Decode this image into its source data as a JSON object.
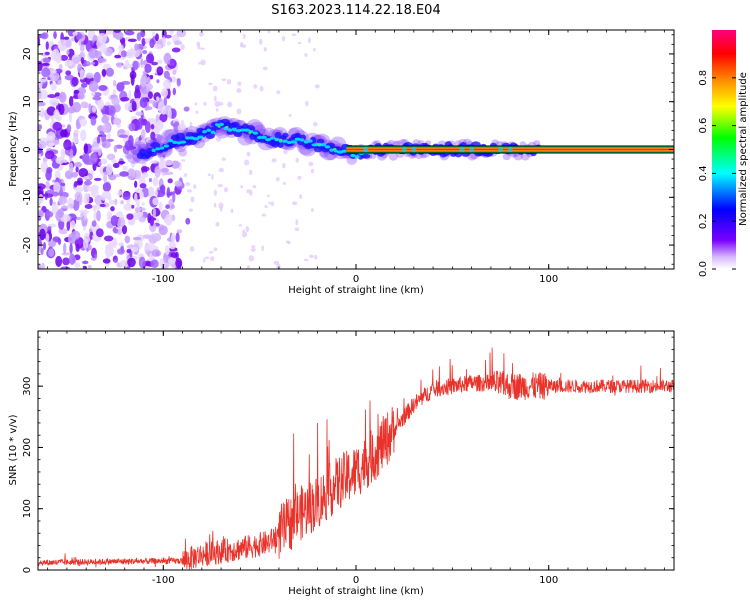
{
  "title": "S163.2023.114.22.18.E04",
  "chart_data": [
    {
      "type": "heatmap",
      "xlabel": "Height of straight line (km)",
      "ylabel": "Frequency (Hz)",
      "xlim": [
        -165,
        165
      ],
      "ylim": [
        -25,
        25
      ],
      "xticks": [
        -100,
        0,
        100
      ],
      "yticks": [
        -20,
        -10,
        0,
        10,
        20
      ],
      "colorbar": {
        "label": "Normalized spectral amplitude",
        "range": [
          0,
          1
        ],
        "ticks": [
          "0.0",
          "0.2",
          "0.4",
          "0.6",
          "0.8"
        ],
        "colors": [
          "#ffffff",
          "#d8b8ff",
          "#7a00ff",
          "#0000ff",
          "#00ffff",
          "#00ff00",
          "#ffff00",
          "#ff8000",
          "#ff0000",
          "#ff0080"
        ]
      },
      "ridge": {
        "x": [
          -110,
          -100,
          -90,
          -80,
          -70,
          -60,
          -50,
          -40,
          -30,
          -20,
          -10,
          0,
          10,
          20,
          40,
          60,
          80,
          100,
          130,
          165
        ],
        "y": [
          -1,
          1,
          2,
          3,
          5,
          4,
          3,
          2,
          2,
          1,
          0,
          -1,
          0,
          0,
          0,
          0,
          0,
          0,
          0,
          0
        ]
      }
    },
    {
      "type": "line",
      "xlabel": "Height of straight line (km)",
      "ylabel": "SNR (10 * v/v)",
      "xlim": [
        -165,
        165
      ],
      "ylim": [
        0,
        390
      ],
      "xticks": [
        -100,
        0,
        100
      ],
      "yticks": [
        0,
        100,
        200,
        300
      ],
      "color": "#e8322a",
      "trend": {
        "x": [
          -165,
          -120,
          -90,
          -80,
          -60,
          -45,
          -40,
          -30,
          -20,
          -10,
          0,
          10,
          20,
          30,
          40,
          50,
          60,
          70,
          80,
          90,
          100,
          120,
          165
        ],
        "y": [
          12,
          14,
          15,
          25,
          35,
          45,
          60,
          90,
          110,
          140,
          160,
          190,
          230,
          270,
          295,
          300,
          305,
          305,
          300,
          300,
          300,
          300,
          300
        ]
      }
    }
  ]
}
